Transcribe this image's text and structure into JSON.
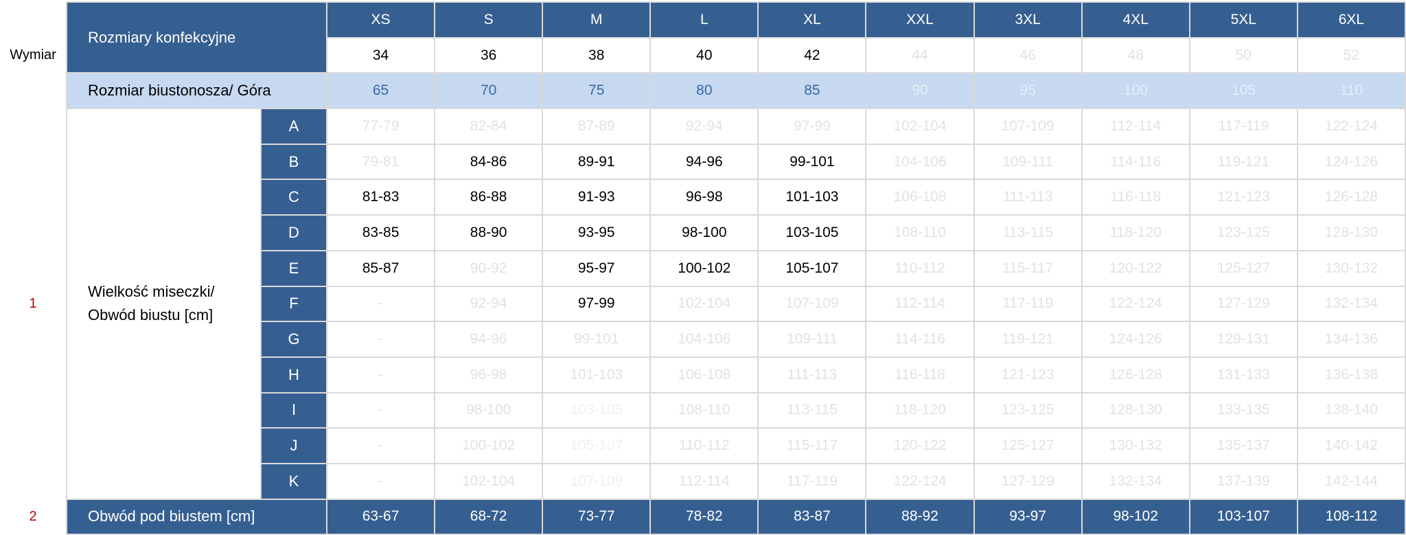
{
  "gutter": {
    "dimension_label": "Wymiar",
    "marker_1": "1",
    "marker_2": "2"
  },
  "header": {
    "clothing_sizes_label": "Rozmiary konfekcyjne",
    "sizes": [
      "XS",
      "S",
      "M",
      "L",
      "XL",
      "XXL",
      "3XL",
      "4XL",
      "5XL",
      "6XL"
    ],
    "eu_sizes": [
      "34",
      "36",
      "38",
      "40",
      "42",
      "44",
      "46",
      "48",
      "50",
      "52"
    ],
    "eu_active_count": 5
  },
  "bra_row": {
    "label": "Rozmiar biustonosza/ Góra",
    "values": [
      "65",
      "70",
      "75",
      "80",
      "85",
      "90",
      "95",
      "100",
      "105",
      "110"
    ],
    "active_count": 5
  },
  "cup_section": {
    "label_line1": "Wielkość miseczki/",
    "label_line2": "Obwód biustu [cm]",
    "rows": [
      {
        "cup": "A",
        "values": [
          "77-79",
          "82-84",
          "87-89",
          "92-94",
          "97-99",
          "102-104",
          "107-109",
          "112-114",
          "117-119",
          "122-124"
        ],
        "status": [
          "faded",
          "faded",
          "faded",
          "faded",
          "faded",
          "faded",
          "faded",
          "faded",
          "faded",
          "faded"
        ]
      },
      {
        "cup": "B",
        "values": [
          "79-81",
          "84-86",
          "89-91",
          "94-96",
          "99-101",
          "104-106",
          "109-111",
          "114-116",
          "119-121",
          "124-126"
        ],
        "status": [
          "faded",
          "active",
          "active",
          "active",
          "active",
          "faded",
          "faded",
          "faded",
          "faded",
          "faded"
        ]
      },
      {
        "cup": "C",
        "values": [
          "81-83",
          "86-88",
          "91-93",
          "96-98",
          "101-103",
          "106-108",
          "111-113",
          "116-118",
          "121-123",
          "126-128"
        ],
        "status": [
          "active",
          "active",
          "active",
          "active",
          "active",
          "faded",
          "faded",
          "faded",
          "faded",
          "faded"
        ]
      },
      {
        "cup": "D",
        "values": [
          "83-85",
          "88-90",
          "93-95",
          "98-100",
          "103-105",
          "108-110",
          "113-115",
          "118-120",
          "123-125",
          "128-130"
        ],
        "status": [
          "active",
          "active",
          "active",
          "active",
          "active",
          "faded",
          "faded",
          "faded",
          "faded",
          "faded"
        ]
      },
      {
        "cup": "E",
        "values": [
          "85-87",
          "90-92",
          "95-97",
          "100-102",
          "105-107",
          "110-112",
          "115-117",
          "120-122",
          "125-127",
          "130-132"
        ],
        "status": [
          "active",
          "faded",
          "active",
          "active",
          "active",
          "faded",
          "faded",
          "faded",
          "faded",
          "faded"
        ]
      },
      {
        "cup": "F",
        "values": [
          "-",
          "92-94",
          "97-99",
          "102-104",
          "107-109",
          "112-114",
          "117-119",
          "122-124",
          "127-129",
          "132-134"
        ],
        "status": [
          "faded",
          "faded",
          "active",
          "faded",
          "faded",
          "faded",
          "faded",
          "faded",
          "faded",
          "faded"
        ]
      },
      {
        "cup": "G",
        "values": [
          "-",
          "94-96",
          "99-101",
          "104-106",
          "109-111",
          "114-116",
          "119-121",
          "124-126",
          "129-131",
          "134-136"
        ],
        "status": [
          "faded",
          "faded",
          "faded",
          "faded",
          "faded",
          "faded",
          "faded",
          "faded",
          "faded",
          "faded"
        ]
      },
      {
        "cup": "H",
        "values": [
          "-",
          "96-98",
          "101-103",
          "106-108",
          "111-113",
          "116-118",
          "121-123",
          "126-128",
          "131-133",
          "136-138"
        ],
        "status": [
          "faded",
          "faded",
          "faded",
          "faded",
          "faded",
          "faded",
          "faded",
          "faded",
          "faded",
          "faded"
        ]
      },
      {
        "cup": "I",
        "values": [
          "-",
          "98-100",
          "103-105",
          "108-110",
          "113-115",
          "118-120",
          "123-125",
          "128-130",
          "133-135",
          "138-140"
        ],
        "status": [
          "faded",
          "faded",
          "faint",
          "faded",
          "faded",
          "faded",
          "faded",
          "faded",
          "faded",
          "faded"
        ]
      },
      {
        "cup": "J",
        "values": [
          "-",
          "100-102",
          "105-107",
          "110-112",
          "115-117",
          "120-122",
          "125-127",
          "130-132",
          "135-137",
          "140-142"
        ],
        "status": [
          "faded",
          "faded",
          "faint",
          "faded",
          "faded",
          "faded",
          "faded",
          "faded",
          "faded",
          "faded"
        ]
      },
      {
        "cup": "K",
        "values": [
          "-",
          "102-104",
          "107-109",
          "112-114",
          "117-119",
          "122-124",
          "127-129",
          "132-134",
          "137-139",
          "142-144"
        ],
        "status": [
          "faded",
          "faded",
          "faint",
          "faded",
          "faded",
          "faded",
          "faded",
          "faded",
          "faded",
          "faded"
        ]
      }
    ]
  },
  "underbust_row": {
    "label": "Obwód pod biustem [cm]",
    "values": [
      "63-67",
      "68-72",
      "73-77",
      "78-82",
      "83-87",
      "88-92",
      "93-97",
      "98-102",
      "103-107",
      "108-112"
    ]
  },
  "colors": {
    "header_blue": "#365f91",
    "bra_row_bg": "#c6d9f1",
    "bra_text": "#3c67a0",
    "faded_text": "#e2e2e2",
    "marker_red": "#c00000"
  }
}
